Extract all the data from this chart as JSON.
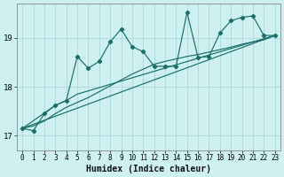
{
  "title": "",
  "xlabel": "Humidex (Indice chaleur)",
  "bg_color": "#cef0f0",
  "grid_color": "#aadada",
  "line_color": "#1a6e6a",
  "xlim": [
    -0.5,
    23.5
  ],
  "ylim": [
    16.7,
    19.7
  ],
  "yticks": [
    17,
    18,
    19
  ],
  "xticks": [
    0,
    1,
    2,
    3,
    4,
    5,
    6,
    7,
    8,
    9,
    10,
    11,
    12,
    13,
    14,
    15,
    16,
    17,
    18,
    19,
    20,
    21,
    22,
    23
  ],
  "zigzag_x": [
    0,
    1,
    2,
    3,
    4,
    5,
    6,
    7,
    8,
    9,
    10,
    11,
    12,
    13,
    14,
    15,
    16,
    17,
    18,
    19,
    20,
    21,
    22,
    23
  ],
  "zigzag_y": [
    17.15,
    17.1,
    17.45,
    17.62,
    17.72,
    18.62,
    18.38,
    18.52,
    18.92,
    19.18,
    18.82,
    18.72,
    18.42,
    18.42,
    18.42,
    19.52,
    18.6,
    18.62,
    19.1,
    19.35,
    19.42,
    19.45,
    19.05,
    19.05
  ],
  "line1_x": [
    0,
    3,
    4,
    5,
    23
  ],
  "line1_y": [
    17.15,
    17.62,
    17.72,
    17.85,
    19.05
  ],
  "line2_x": [
    0,
    1,
    2,
    3,
    4,
    5,
    6,
    7,
    8,
    9,
    10,
    11,
    12,
    13,
    14,
    15,
    16,
    17,
    18,
    19,
    20,
    21,
    22,
    23
  ],
  "line2_y": [
    17.15,
    17.2,
    17.3,
    17.45,
    17.58,
    17.68,
    17.78,
    17.9,
    18.02,
    18.14,
    18.26,
    18.36,
    18.46,
    18.52,
    18.57,
    18.62,
    18.66,
    18.71,
    18.76,
    18.81,
    18.87,
    18.92,
    18.96,
    19.05
  ],
  "line3_x": [
    0,
    23
  ],
  "line3_y": [
    17.15,
    19.05
  ]
}
